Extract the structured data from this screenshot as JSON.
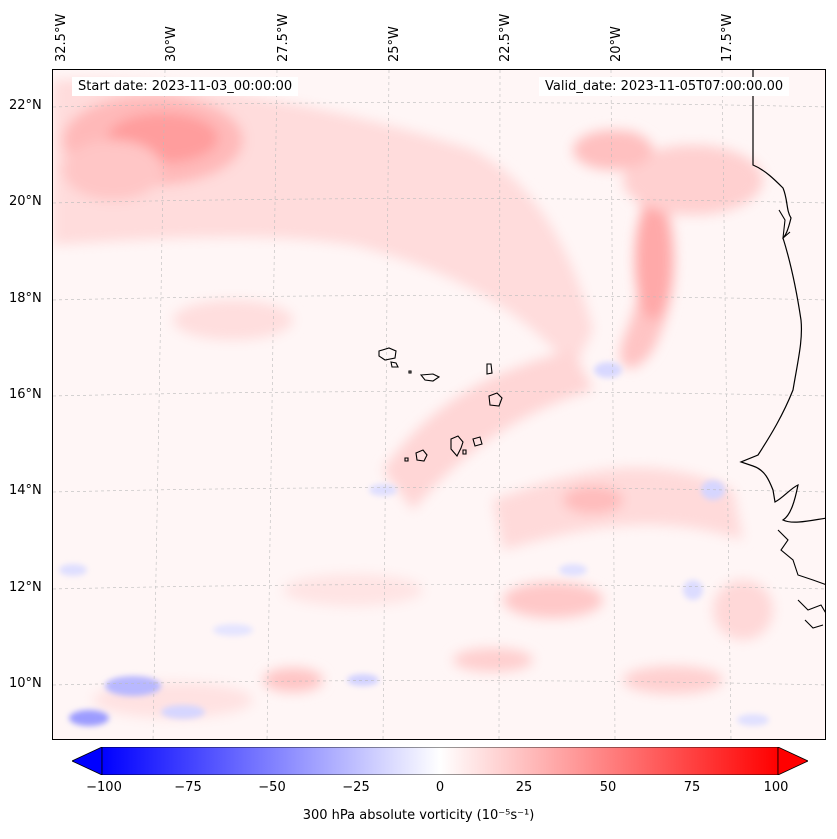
{
  "header": {
    "start_date": "Start date: 2023-11-03_00:00:00",
    "valid_date": "Valid_date: 2023-11-05T07:00:00.00"
  },
  "map": {
    "lon_labels": [
      "32.5°W",
      "30°W",
      "27.5°W",
      "25°W",
      "22.5°W",
      "20°W",
      "17.5°W"
    ],
    "lat_labels": [
      "22°N",
      "20°N",
      "18°N",
      "16°N",
      "14°N",
      "12°N",
      "10°N"
    ],
    "field": "300 hPa absolute vorticity",
    "coastline_color": "#000000",
    "gridline_color": "#bbbbbb"
  },
  "colorbar": {
    "label": "300 hPa absolute vorticity (10⁻⁵s⁻¹)",
    "ticks": [
      "−100",
      "−75",
      "−50",
      "−25",
      "0",
      "25",
      "50",
      "75",
      "100"
    ],
    "vmin": -100,
    "vmax": 100,
    "colormap": "bwr",
    "extend": "both",
    "color_low": "#0000ff",
    "color_mid": "#ffffff",
    "color_high": "#ff0000"
  }
}
